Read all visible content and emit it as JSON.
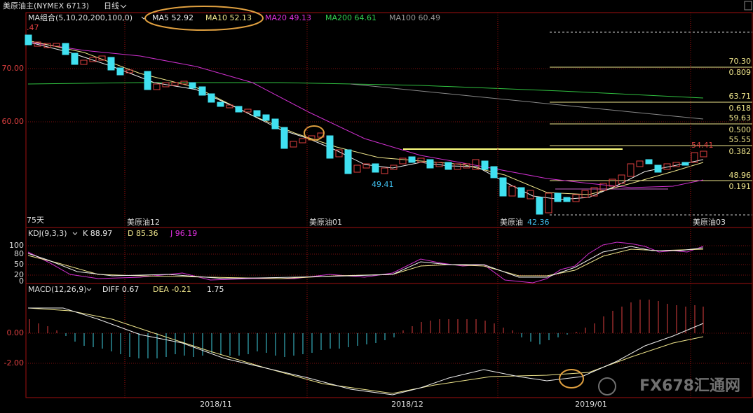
{
  "header": {
    "instrument": "美原油主(NYMEX 6713)",
    "period": "日线"
  },
  "ma_legend": {
    "title": "MA组合(5,10,20,200,100,0)",
    "items": [
      "MA5 52.92",
      "MA10 52.13",
      "MA20 49.13",
      "MA200 64.61",
      "MA100 60.49"
    ]
  },
  "price_axis": [
    "70.00",
    "60.00"
  ],
  "top_label": ".47",
  "days_label": "75天",
  "contracts": [
    "美原油12",
    "美原油01",
    "美原油",
    "美原油03"
  ],
  "annotations": {
    "high_right": "54.41",
    "mid_low": "49.41",
    "low": "42.36"
  },
  "fibonacci": [
    {
      "price": "70.30",
      "ratio": "0.809"
    },
    {
      "price": "63.71",
      "ratio": "0.618"
    },
    {
      "price": "59.63",
      "ratio": "0.500"
    },
    {
      "price": "55.55",
      "ratio": "0.382"
    },
    {
      "price": "48.96",
      "ratio": "0.191"
    }
  ],
  "kdj": {
    "title": "KDJ(9,3,3)",
    "k": "K 88.97",
    "d": "D 85.36",
    "j": "J 96.19",
    "axis": [
      "100",
      "80",
      "50",
      "20",
      "0"
    ]
  },
  "macd": {
    "title": "MACD(12,26,9)",
    "diff": "DIFF 0.67",
    "dea": "DEA -0.21",
    "macd": "1.75",
    "axis": [
      "0.00",
      "-2.00"
    ]
  },
  "dates": [
    "2018/11",
    "2018/12",
    "2019/01"
  ],
  "watermark": "FX678汇通网"
}
